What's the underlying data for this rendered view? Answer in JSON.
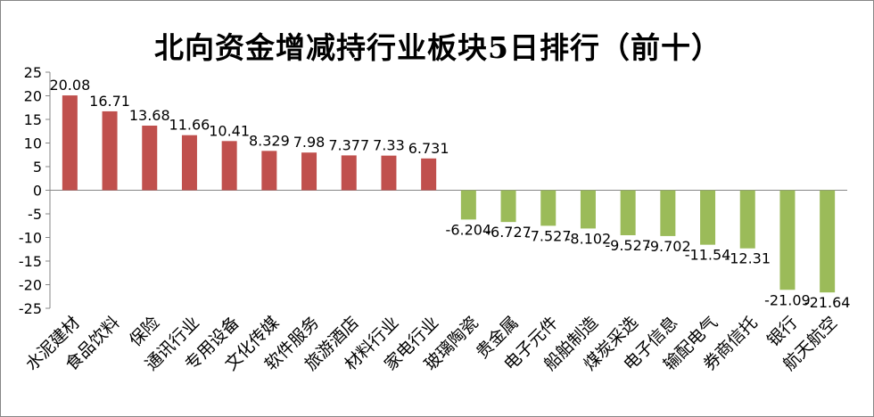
{
  "chart_data": {
    "type": "bar",
    "title": "北向资金增减持行业板块5日排行（前十）",
    "categories": [
      "水泥建材",
      "食品饮料",
      "保险",
      "通讯行业",
      "专用设备",
      "文化传媒",
      "软件服务",
      "旅游酒店",
      "材料行业",
      "家电行业",
      "玻璃陶瓷",
      "贵金属",
      "电子元件",
      "船舶制造",
      "煤炭采选",
      "电子信息",
      "输配电气",
      "券商信托",
      "银行",
      "航天航空"
    ],
    "values": [
      20.08,
      16.71,
      13.68,
      11.66,
      10.41,
      8.329,
      7.98,
      7.377,
      7.33,
      6.731,
      -6.204,
      -6.727,
      -7.527,
      -8.102,
      -9.527,
      -9.702,
      -11.54,
      -12.31,
      -21.09,
      -21.64
    ],
    "value_labels": [
      "20.08",
      "16.71",
      "13.68",
      "11.66",
      "10.41",
      "8.329",
      "7.98",
      "7.377",
      "7.33",
      "6.731",
      "-6.204",
      "-6.727",
      "-7.527",
      "-8.102",
      "-9.527",
      "-9.702",
      "-11.54",
      "-12.31",
      "-21.09",
      "-21.64"
    ],
    "ylim": [
      -25,
      25
    ],
    "yticks": [
      25,
      20,
      15,
      10,
      5,
      0,
      -5,
      -10,
      -15,
      -20,
      -25
    ],
    "grid": false,
    "legend": "none",
    "colors": {
      "positive": "#C0504D",
      "negative": "#9BBB59",
      "axis": "#868686",
      "text": "#000000"
    }
  }
}
